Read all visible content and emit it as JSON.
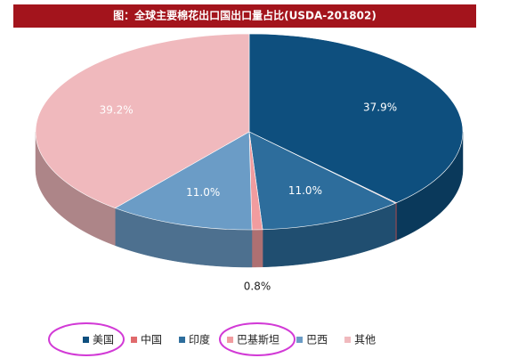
{
  "chart_data": {
    "type": "pie3d",
    "title": "图：全球主要棉花出口国出口量占比(USDA-201802)",
    "categories": [
      "美国",
      "中国",
      "印度",
      "巴基斯坦",
      "巴西",
      "其他"
    ],
    "values": [
      37.9,
      0.1,
      11.0,
      0.8,
      11.0,
      39.2
    ],
    "value_labels": [
      "37.9%",
      null,
      "11.0%",
      "0.8%",
      "11.0%",
      "39.2%"
    ],
    "colors": [
      "#0e4f7e",
      "#e06a6c",
      "#2d6d9c",
      "#f19c9f",
      "#6b9cc6",
      "#f0b9bd"
    ],
    "legend": "bottom"
  }
}
